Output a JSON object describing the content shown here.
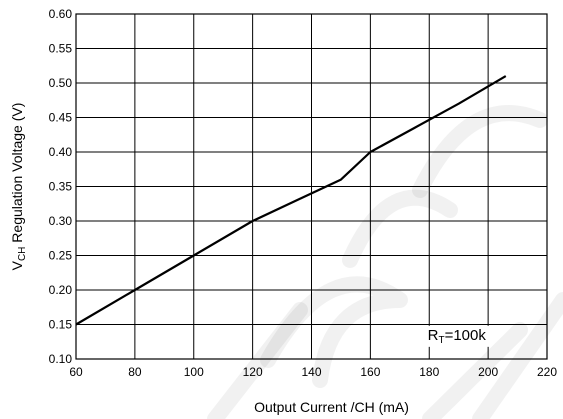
{
  "chart_data": {
    "type": "line",
    "xlabel": "Output Current /CH (mA)",
    "ylabel_main": "V",
    "ylabel_sub": "CH",
    "ylabel_rest": " Regulation Voltage (V)",
    "xlim": [
      60,
      220
    ],
    "ylim": [
      0.1,
      0.6
    ],
    "xticks": [
      60,
      80,
      100,
      120,
      140,
      160,
      180,
      200,
      220
    ],
    "yticks": [
      "0.10",
      "0.15",
      "0.20",
      "0.25",
      "0.30",
      "0.35",
      "0.40",
      "0.45",
      "0.50",
      "0.55",
      "0.60"
    ],
    "grid": true,
    "series": [
      {
        "x": [
          60,
          80,
          100,
          120,
          135,
          150,
          160,
          175,
          190,
          206
        ],
        "y": [
          0.15,
          0.2,
          0.25,
          0.3,
          0.33,
          0.36,
          0.4,
          0.435,
          0.47,
          0.51
        ]
      }
    ],
    "annotation": {
      "main": "R",
      "sub": "T",
      "rest": "=100k",
      "x": 191,
      "y": 0.135
    }
  },
  "colors": {
    "line": "#000000",
    "grid": "#000000",
    "background": "#ffffff"
  }
}
